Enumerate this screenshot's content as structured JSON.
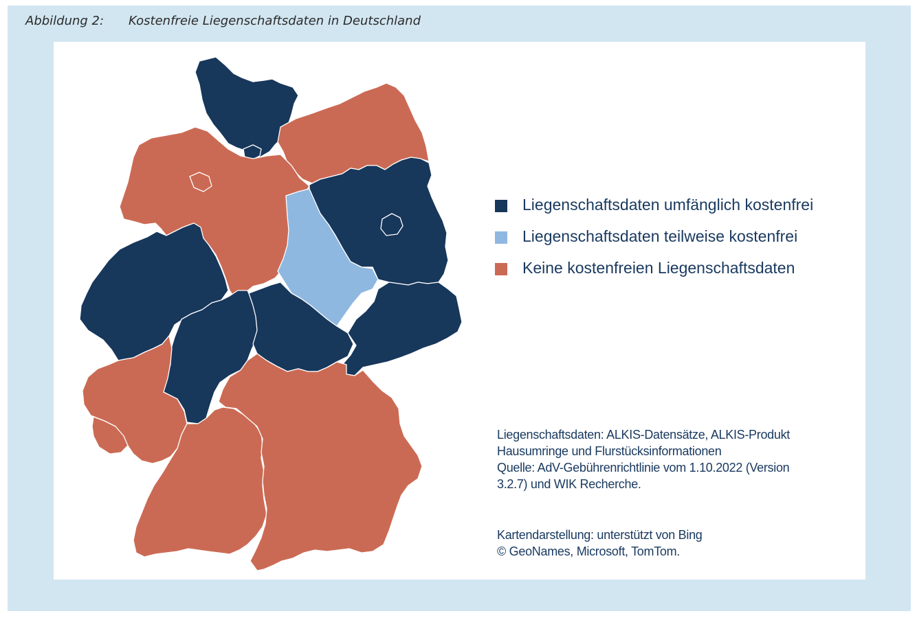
{
  "caption": {
    "number": "Abbildung 2:",
    "title": "Kostenfreie Liegenschaftsdaten in Deutschland"
  },
  "colors": {
    "umfaenglich": "#17375b",
    "teilweise": "#8fb8e1",
    "keine": "#cb6a54",
    "border": "#ffffff"
  },
  "legend": [
    {
      "label": "Liegenschaftsdaten umfänglich kostenfrei",
      "color": "#17375b"
    },
    {
      "label": "Liegenschaftsdaten teilweise kostenfrei",
      "color": "#8fb8e1"
    },
    {
      "label": "Keine kostenfreien Liegenschaftsdaten",
      "color": "#cb6a54"
    }
  ],
  "notes": {
    "line1": "Liegenschaftsdaten: ALKIS-Datensätze, ALKIS-Produkt",
    "line2": "Hausumringe und Flurstücksinformationen",
    "line3": "Quelle: AdV-Gebührenrichtlinie vom 1.10.2022 (Version",
    "line4": "3.2.7) und WIK Recherche.",
    "line5": "Kartendarstellung: unterstützt von Bing",
    "line6": "© GeoNames, Microsoft, TomTom."
  },
  "states": [
    {
      "id": "schleswig-holstein",
      "category": "umfaenglich"
    },
    {
      "id": "hamburg",
      "category": "umfaenglich"
    },
    {
      "id": "mecklenburg-vorpommern",
      "category": "keine"
    },
    {
      "id": "niedersachsen",
      "category": "keine"
    },
    {
      "id": "bremen",
      "category": "keine"
    },
    {
      "id": "brandenburg",
      "category": "umfaenglich"
    },
    {
      "id": "berlin",
      "category": "umfaenglich"
    },
    {
      "id": "sachsen-anhalt",
      "category": "teilweise"
    },
    {
      "id": "nordrhein-westfalen",
      "category": "umfaenglich"
    },
    {
      "id": "hessen",
      "category": "umfaenglich"
    },
    {
      "id": "thueringen",
      "category": "umfaenglich"
    },
    {
      "id": "sachsen",
      "category": "umfaenglich"
    },
    {
      "id": "rheinland-pfalz",
      "category": "keine"
    },
    {
      "id": "saarland",
      "category": "keine"
    },
    {
      "id": "baden-wuerttemberg",
      "category": "keine"
    },
    {
      "id": "bayern",
      "category": "keine"
    }
  ]
}
